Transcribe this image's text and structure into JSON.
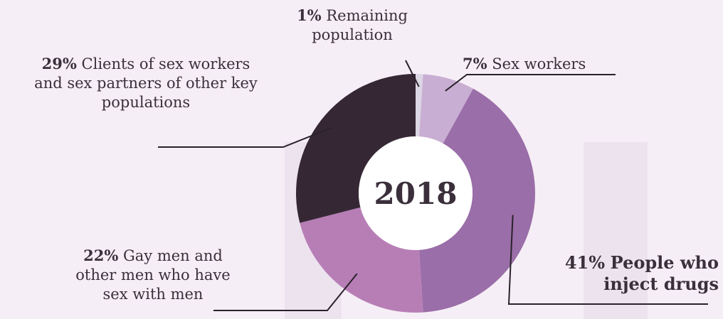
{
  "chart_data": {
    "type": "pie",
    "center_label": "2018",
    "categories": [
      "Remaining population",
      "Sex workers",
      "People who inject drugs",
      "Gay men and other men who have sex with men",
      "Clients of sex workers and sex partners of other key populations"
    ],
    "values": [
      1,
      7,
      41,
      22,
      29
    ],
    "value_labels": [
      "1%",
      "7%",
      "41%",
      "22%",
      "29%"
    ],
    "label_lines": [
      [
        "Remaining",
        "population"
      ],
      [
        "Sex workers"
      ],
      [
        "People who",
        "inject drugs"
      ],
      [
        "Gay men and",
        "other men who have",
        "sex with men"
      ],
      [
        "Clients of sex workers",
        "and sex partners of other key",
        "populations"
      ]
    ],
    "colors": [
      "#dbd6e3",
      "#c9aed3",
      "#9a6ea8",
      "#b77eb6",
      "#362735"
    ]
  }
}
